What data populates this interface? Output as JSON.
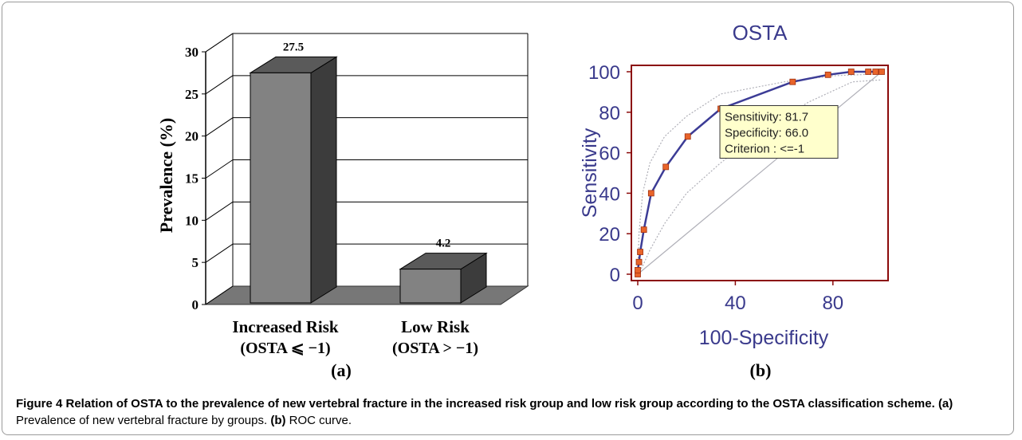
{
  "chart_data": [
    {
      "type": "bar",
      "panel_label": "(a)",
      "ylabel": "Prevalence (%)",
      "ylim": [
        0,
        30
      ],
      "yticks": [
        "0",
        "5",
        "10",
        "15",
        "20",
        "25",
        "30"
      ],
      "categories": [
        {
          "line1": "Increased Risk",
          "line2": "(OSTA ⩽ −1)"
        },
        {
          "line1": "Low Risk",
          "line2": "(OSTA > −1)"
        }
      ],
      "values": [
        27.5,
        4.2
      ],
      "data_labels": [
        "27.5",
        "4.2"
      ],
      "grid": true,
      "style": "3d"
    },
    {
      "type": "line",
      "panel_label": "(b)",
      "title": "OSTA",
      "xlabel": "100-Specificity",
      "ylabel": "Sensitivity",
      "xlim": [
        0,
        100
      ],
      "ylim": [
        0,
        100
      ],
      "xticks": [
        "0",
        "40",
        "80"
      ],
      "yticks": [
        "0",
        "20",
        "40",
        "60",
        "80",
        "100"
      ],
      "series": [
        {
          "values": [
            [
              0,
              0
            ],
            [
              0,
              2
            ],
            [
              0.5,
              6
            ],
            [
              1,
              11
            ],
            [
              2.5,
              22
            ],
            [
              5.5,
              40
            ],
            [
              11.5,
              53
            ],
            [
              20.5,
              68
            ],
            [
              34,
              81.7
            ],
            [
              63.5,
              95
            ],
            [
              78,
              98.5
            ],
            [
              87.5,
              100
            ],
            [
              94.5,
              100
            ],
            [
              97.5,
              100
            ],
            [
              100,
              100
            ]
          ]
        }
      ],
      "confidence_band": {
        "upper": [
          [
            0,
            0
          ],
          [
            0.5,
            20
          ],
          [
            2,
            40
          ],
          [
            5,
            55
          ],
          [
            11,
            68
          ],
          [
            20,
            78
          ],
          [
            34,
            89
          ],
          [
            60,
            95
          ],
          [
            80,
            98
          ],
          [
            100,
            99
          ]
        ],
        "lower": [
          [
            0,
            0
          ],
          [
            2,
            4
          ],
          [
            5,
            12
          ],
          [
            11,
            25
          ],
          [
            20,
            40
          ],
          [
            34,
            55
          ],
          [
            50,
            70
          ],
          [
            70,
            85
          ],
          [
            88,
            95
          ],
          [
            100,
            96
          ]
        ]
      },
      "reference_line": [
        [
          0,
          0
        ],
        [
          100,
          100
        ]
      ],
      "annotation": {
        "lines": [
          "Sensitivity: 81.7",
          "Specificity: 66.0",
          "Criterion : <=-1"
        ],
        "point": [
          34,
          81.7
        ]
      }
    }
  ],
  "caption": {
    "title": "Figure 4 Relation of OSTA to the prevalence of new vertebral fracture in the increased risk group and low risk group according to the OSTA classification scheme.",
    "part_a_label": "(a)",
    "part_a_text": " Prevalence of new vertebral fracture by groups.",
    "part_b_label": "(b)",
    "part_b_text": " ROC curve."
  },
  "colors": {
    "bar_front": "#828282",
    "bar_side": "#3c3c3c",
    "bar_top": "#5a5a5a",
    "floor": "#777777",
    "roc_line": "#3c3c96",
    "roc_marker": "#e8642a",
    "frame_red": "#8b0a0a",
    "band": "#b0b0b8",
    "text_blue": "#3a3a8c",
    "annotation_bg": "#ffffcc"
  }
}
